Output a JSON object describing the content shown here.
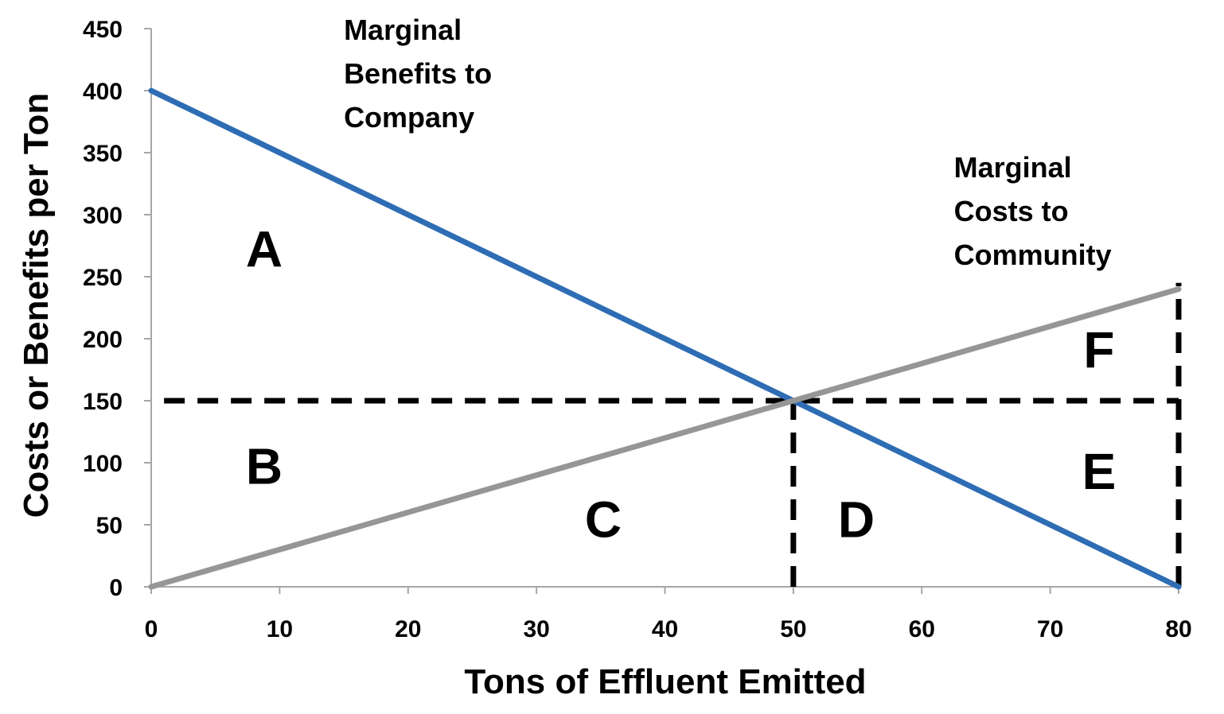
{
  "chart_data": {
    "type": "line",
    "xlabel": "Tons of Effluent Emitted",
    "ylabel": "Costs or Benefits per Ton",
    "xlim": [
      0,
      80
    ],
    "ylim": [
      0,
      450
    ],
    "x_ticks": [
      0,
      10,
      20,
      30,
      40,
      50,
      60,
      70,
      80
    ],
    "y_ticks": [
      0,
      50,
      100,
      150,
      200,
      250,
      300,
      350,
      400,
      450
    ],
    "grid": false,
    "legend": "none",
    "series": [
      {
        "name": "Marginal Benefits to Company",
        "label_lines": [
          "Marginal",
          "Benefits to",
          "Company"
        ],
        "label_anchor": [
          15,
          450
        ],
        "color": "#2E6DB4",
        "x": [
          0,
          80
        ],
        "y": [
          400,
          0
        ]
      },
      {
        "name": "Marginal Costs to Community",
        "label_lines": [
          "Marginal",
          "Costs to",
          "Community"
        ],
        "label_anchor": [
          62.5,
          339
        ],
        "color": "#969696",
        "x": [
          0,
          80
        ],
        "y": [
          0,
          240
        ]
      }
    ],
    "reference_lines": [
      {
        "type": "dashed",
        "x": [
          1,
          80
        ],
        "y": [
          150,
          150
        ]
      },
      {
        "type": "dashed",
        "x": [
          50,
          50
        ],
        "y": [
          0,
          150
        ]
      },
      {
        "type": "dashed",
        "x": [
          80,
          80
        ],
        "y": [
          0,
          245
        ]
      }
    ],
    "annotations": [
      {
        "text": "A",
        "x": 8.8,
        "y": 258
      },
      {
        "text": "B",
        "x": 8.8,
        "y": 83
      },
      {
        "text": "C",
        "x": 35.2,
        "y": 40
      },
      {
        "text": "D",
        "x": 54.9,
        "y": 40
      },
      {
        "text": "E",
        "x": 73.8,
        "y": 79
      },
      {
        "text": "F",
        "x": 73.8,
        "y": 177
      }
    ]
  }
}
